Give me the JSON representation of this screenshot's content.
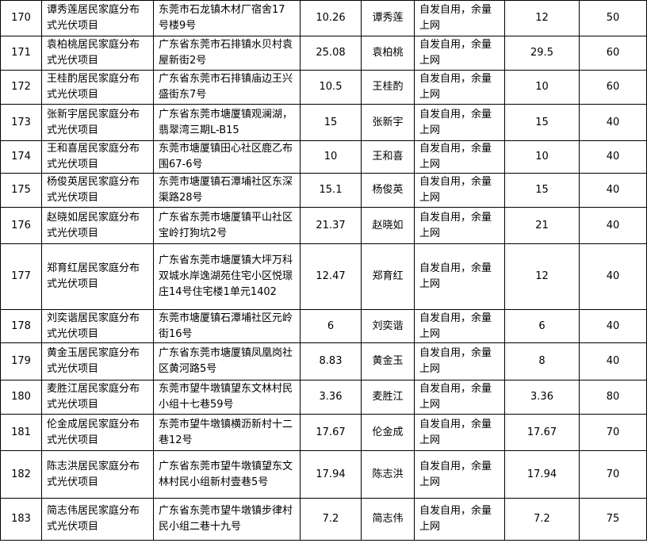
{
  "table": {
    "rows": [
      [
        "170",
        "谭秀莲居民家庭分布式光伏项目",
        "东莞市石龙镇木材厂宿舍17号楼9号",
        "10.26",
        "谭秀莲",
        "自发自用，余量上网",
        "12",
        "50"
      ],
      [
        "171",
        "袁柏桃居民家庭分布式光伏项目",
        "广东省东莞市石排镇水贝村袁屋新街2号",
        "25.08",
        "袁柏桃",
        "自发自用，余量上网",
        "29.5",
        "60"
      ],
      [
        "172",
        "王桂酌居民家庭分布式光伏项目",
        "广东省东莞市石排镇庙边王兴盛街东7号",
        "10.5",
        "王桂酌",
        "自发自用，余量上网",
        "10",
        "60"
      ],
      [
        "173",
        "张新宇居民家庭分布式光伏项目",
        "广东省东莞市塘厦镇观澜湖，翡翠湾三期L-B15",
        "15",
        "张新宇",
        "自发自用，余量上网",
        "15",
        "40"
      ],
      [
        "174",
        "王和喜居民家庭分布式光伏项目",
        "东莞市塘厦镇田心社区鹿乙布围67-6号",
        "10",
        "王和喜",
        "自发自用，余量上网",
        "10",
        "40"
      ],
      [
        "175",
        "杨俊英居民家庭分布式光伏项目",
        "东莞市塘厦镇石潭埔社区东深渠路28号",
        "15.1",
        "杨俊英",
        "自发自用，余量上网",
        "15",
        "40"
      ],
      [
        "176",
        "赵晓如居民家庭分布式光伏项目",
        "广东省东莞市塘厦镇平山社区宝岭打狗坑2号",
        "21.37",
        "赵晓如",
        "自发自用，余量上网",
        "21",
        "40"
      ],
      [
        "177",
        "郑育红居民家庭分布式光伏项目",
        "广东省东莞市塘厦镇大坪万科双城水岸逸湖苑住宅小区悦璟庄14号住宅楼1单元1402",
        "12.47",
        "郑育红",
        "自发自用，余量上网",
        "12",
        "40"
      ],
      [
        "178",
        "刘奕谐居民家庭分布式光伏项目",
        "东莞市塘厦镇石潭埔社区元岭街16号",
        "6",
        "刘奕谐",
        "自发自用，余量上网",
        "6",
        "40"
      ],
      [
        "179",
        "黄金玉居民家庭分布式光伏项目",
        "广东省东莞市塘厦镇凤凰岗社区黄河路5号",
        "8.83",
        "黄金玉",
        "自发自用，余量上网",
        "8",
        "40"
      ],
      [
        "180",
        "麦胜江居民家庭分布式光伏项目",
        "东莞市望牛墩镇望东文林村民小组十七巷59号",
        "3.36",
        "麦胜江",
        "自发自用，余量上网",
        "3.36",
        "80"
      ],
      [
        "181",
        "伦金成居民家庭分布式光伏项目",
        "东莞市望牛墩镇横沥新村十二巷12号",
        "17.67",
        "伦金成",
        "自发自用，余量上网",
        "17.67",
        "70"
      ],
      [
        "182",
        "陈志洪居民家庭分布式光伏项目",
        "广东省东莞市望牛墩镇望东文林村民小组新村壹巷5号",
        "17.94",
        "陈志洪",
        "自发自用，余量上网",
        "17.94",
        "70"
      ],
      [
        "183",
        "简志伟居民家庭分布式光伏项目",
        "广东省东莞市望牛墩镇步律村民小组二巷十九号",
        "7.2",
        "简志伟",
        "自发自用，余量上网",
        "7.2",
        "75"
      ]
    ]
  }
}
